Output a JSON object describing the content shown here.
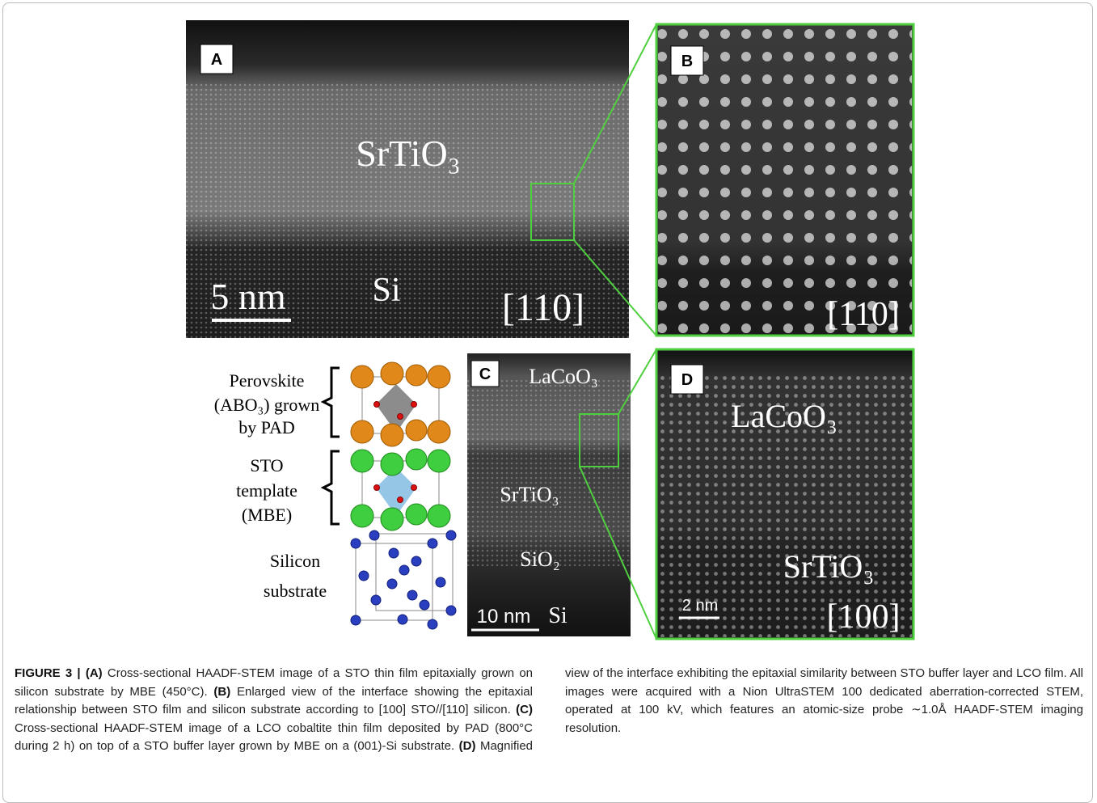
{
  "figure": {
    "panels": {
      "a": {
        "label": "A",
        "material": "SrTiO₃",
        "substrate": "Si",
        "scale": "5 nm",
        "zone": "[110]"
      },
      "b": {
        "label": "B",
        "zone": "[110]"
      },
      "c": {
        "label": "C",
        "layers": [
          "LaCoO₃",
          "SrTiO₃",
          "SiO₂"
        ],
        "substrate": "Si",
        "scale": "10 nm"
      },
      "d": {
        "label": "D",
        "layers": [
          "LaCoO₃",
          "SrTiO₃"
        ],
        "scale": "2 nm",
        "zone": "[100]"
      }
    },
    "schematic": {
      "perovskite": [
        "Perovskite",
        "(ABO₃) grown",
        "by PAD"
      ],
      "template": [
        "STO",
        "template",
        "(MBE)"
      ],
      "silicon": [
        "Silicon",
        "substrate"
      ]
    }
  },
  "caption": {
    "label": "FIGURE 3 |",
    "parts": [
      {
        "tag": "(A)",
        "text": "Cross-sectional HAADF-STEM image of a STO thin film epitaxially grown on silicon substrate by MBE (450°C)."
      },
      {
        "tag": "(B)",
        "text": "Enlarged view of the interface showing the epitaxial relationship between STO film and silicon substrate according to [100] STO//[110] silicon."
      },
      {
        "tag": "(C)",
        "text": "Cross-sectional HAADF-STEM image of a LCO cobaltite thin film deposited by PAD (800°C during 2 h) on top of a STO buffer layer grown by MBE on a (001)-Si substrate."
      },
      {
        "tag": "(D)",
        "text": "Magnified view of the interface exhibiting the epitaxial similarity between STO buffer layer and LCO film. All images were acquired with a Nion UltraSTEM 100 dedicated aberration-corrected STEM, operated at 100 kV, which features an atomic-size probe ∼1.0Å HAADF-STEM imaging resolution."
      }
    ]
  }
}
